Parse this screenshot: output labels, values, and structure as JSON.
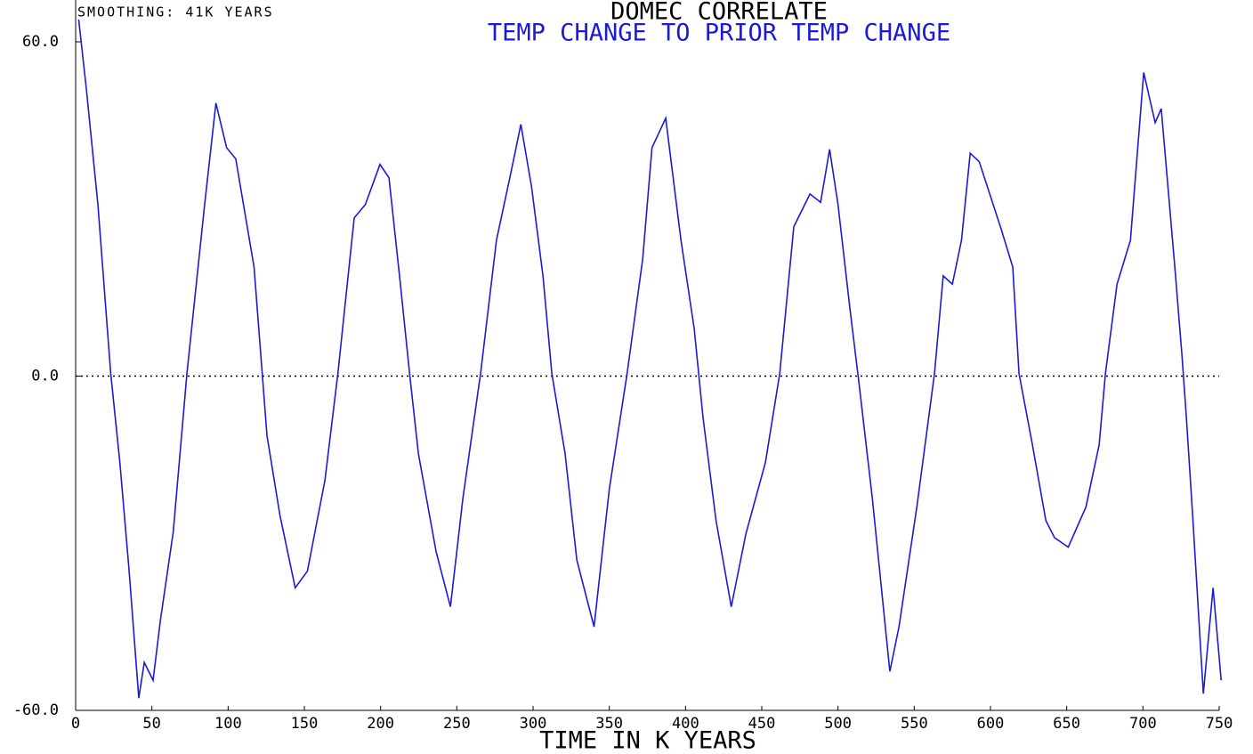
{
  "chart_data": {
    "type": "line",
    "title": "DOMEC CORRELATE",
    "subtitle": "TEMP CHANGE TO PRIOR TEMP CHANGE",
    "annotation": "SMOOTHING: 41K YEARS",
    "x_label": "TIME IN K YEARS",
    "xlim": [
      0,
      750
    ],
    "xticks": [
      0,
      50,
      100,
      150,
      200,
      250,
      300,
      350,
      400,
      450,
      500,
      550,
      600,
      650,
      700,
      750
    ],
    "ylim": [
      -60,
      60
    ],
    "yticks": [
      {
        "value": -60,
        "label": "-60.0"
      },
      {
        "value": 0,
        "label": "0.0"
      },
      {
        "value": 60,
        "label": "60.0"
      }
    ],
    "zero_line": true,
    "series": [
      {
        "name": null,
        "color": "#1a1ad8",
        "x": [
          2,
          7,
          14.6,
          23,
          29,
          35,
          41.4,
          45,
          50.8,
          55.5,
          64,
          73,
          84.6,
          92,
          99,
          105,
          117,
          125.5,
          134,
          144,
          152,
          163.5,
          172,
          182.7,
          190,
          199.6,
          205.5,
          213,
          219,
          224.8,
          236.4,
          245.8,
          254,
          265.6,
          276,
          286,
          292,
          299,
          306.5,
          312.3,
          321,
          328.7,
          340,
          350,
          361.7,
          371.9,
          378,
          387,
          397,
          405.7,
          411.5,
          420,
          430,
          439.6,
          452.4,
          461.8,
          471,
          481.6,
          488.6,
          494.5,
          500,
          508,
          513.7,
          522.5,
          534,
          540,
          551.7,
          563.3,
          569,
          575,
          581,
          586.7,
          592.6,
          607,
          614.6,
          618.7,
          627.5,
          636.3,
          642,
          651,
          662.6,
          671.3,
          675.4,
          683,
          691.8,
          700.5,
          708,
          712,
          720.9,
          725.6,
          728.5,
          732.6,
          739.6,
          746,
          751.3
        ],
        "values": [
          64,
          51.6,
          30.8,
          0.5,
          -15.5,
          -34.7,
          -57.8,
          -51.4,
          -54.6,
          -44,
          -28,
          0.5,
          30.8,
          49,
          41,
          39,
          19.6,
          -10.7,
          -25,
          -38,
          -35,
          -18.7,
          0.5,
          28.4,
          30.8,
          38,
          35.6,
          16.5,
          0.5,
          -13.9,
          -31.5,
          -41.4,
          -21.9,
          0.5,
          24.4,
          37.2,
          45.2,
          34,
          18,
          0.5,
          -13.9,
          -33,
          -45,
          -20.3,
          0.5,
          21,
          41,
          46.3,
          24.4,
          8.5,
          -7.5,
          -25.9,
          -41.4,
          -28.3,
          -15.5,
          0.5,
          26.8,
          32.7,
          31.2,
          40.7,
          30.8,
          11.7,
          -1.1,
          -21.9,
          -53,
          -45,
          -23.5,
          0.5,
          18,
          16.5,
          24.4,
          40,
          38.5,
          26.4,
          19.6,
          0.5,
          -12.3,
          -25.9,
          -29,
          -30.7,
          -23.5,
          -12.3,
          0.5,
          16.5,
          24.4,
          54.5,
          45.5,
          48,
          19.6,
          3.7,
          -7.5,
          -25,
          -57,
          -38,
          -54.6
        ]
      }
    ]
  }
}
